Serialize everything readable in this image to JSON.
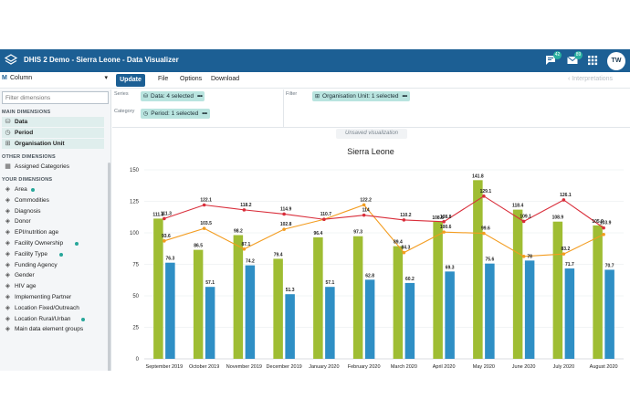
{
  "header": {
    "title": "DHIS 2 Demo - Sierra Leone - Data Visualizer",
    "interpretations_badge": "42",
    "messages_badge": "89",
    "user_initials": "TW"
  },
  "menubar": {
    "vis_type": "Column",
    "update_label": "Update",
    "file_label": "File",
    "options_label": "Options",
    "download_label": "Download",
    "interpretations_label": "Interpretations"
  },
  "sidebar": {
    "filter_placeholder": "Filter dimensions",
    "main_heading": "MAIN DIMENSIONS",
    "main_dimensions": [
      "Data",
      "Period",
      "Organisation Unit"
    ],
    "other_heading": "OTHER DIMENSIONS",
    "other_dimensions": [
      "Assigned Categories"
    ],
    "your_heading": "YOUR DIMENSIONS",
    "your_dimensions": [
      {
        "label": "Area",
        "active": true
      },
      {
        "label": "Commodities",
        "active": false
      },
      {
        "label": "Diagnosis",
        "active": false
      },
      {
        "label": "Donor",
        "active": false
      },
      {
        "label": "EPI/nutrition age",
        "active": false
      },
      {
        "label": "Facility Ownership",
        "active": true
      },
      {
        "label": "Facility Type",
        "active": true
      },
      {
        "label": "Funding Agency",
        "active": false
      },
      {
        "label": "Gender",
        "active": false
      },
      {
        "label": "HIV age",
        "active": false
      },
      {
        "label": "Implementing Partner",
        "active": false
      },
      {
        "label": "Location Fixed/Outreach",
        "active": false
      },
      {
        "label": "Location Rural/Urban",
        "active": true
      },
      {
        "label": "Main data element groups",
        "active": false
      }
    ]
  },
  "layout": {
    "series_label": "Series",
    "category_label": "Category",
    "filter_label": "Filter",
    "series_chip": "Data: 4 selected",
    "category_chip": "Period: 1 selected",
    "filter_chip": "Organisation Unit: 1 selected",
    "more": "•••"
  },
  "canvas": {
    "unsaved": "Unsaved visualization"
  },
  "colors": {
    "header": "#1c5f94",
    "green": "#9fbd33",
    "blue": "#2f8fc5",
    "red": "#d92d3a",
    "orange": "#f39c1f"
  },
  "chart_data": {
    "type": "bar",
    "title": "Sierra Leone",
    "categories": [
      "September 2019",
      "October 2019",
      "November 2019",
      "December 2019",
      "January 2020",
      "February 2020",
      "March 2020",
      "April 2020",
      "May 2020",
      "June 2020",
      "July 2020",
      "August 2020"
    ],
    "ylim": [
      0,
      150
    ],
    "yticks": [
      0,
      25,
      50,
      75,
      100,
      125,
      150
    ],
    "series": [
      {
        "name": "Green bars",
        "type": "bar",
        "color": "#9fbd33",
        "values": [
          111.3,
          86.5,
          98.2,
          79.4,
          96.4,
          97.3,
          89.4,
          108.8,
          141.8,
          118.4,
          108.9,
          105.9
        ]
      },
      {
        "name": "Blue bars",
        "type": "bar",
        "color": "#2f8fc5",
        "values": [
          76.3,
          57.1,
          74.2,
          51.3,
          57.1,
          62.8,
          60.2,
          69.3,
          75.6,
          78,
          71.7,
          70.7
        ]
      },
      {
        "name": "Red line",
        "type": "line",
        "color": "#d92d3a",
        "values": [
          111.3,
          122.1,
          118.2,
          114.9,
          110.7,
          114,
          110.2,
          108.8,
          129.1,
          109.1,
          126.1,
          103.9
        ]
      },
      {
        "name": "Orange line",
        "type": "line",
        "color": "#f39c1f",
        "values": [
          93.6,
          103.5,
          87.1,
          102.8,
          110.7,
          122.2,
          84.3,
          100.6,
          99.6,
          81.3,
          83.2,
          98.7
        ]
      }
    ],
    "labels": {
      "red": [
        "111.3",
        "122.1",
        "118.2",
        "114.9",
        "110.7",
        "114",
        "110.2",
        "108.8",
        "129.1",
        "109.1",
        "126.1",
        "103.9"
      ],
      "orange": [
        "93.6",
        "103.5",
        "87.1",
        "102.8",
        "",
        "122.2",
        "84.3",
        "100.6",
        "99.6",
        "",
        "83.2",
        ""
      ]
    }
  }
}
